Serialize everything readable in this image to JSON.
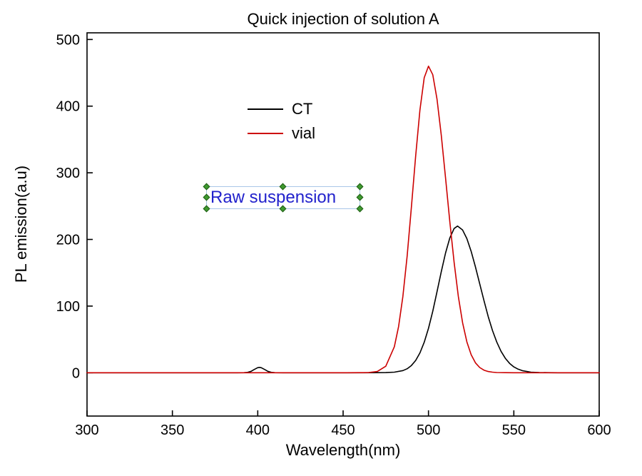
{
  "chart_data": {
    "type": "line",
    "title": "Quick injection of solution A",
    "xlabel": "Wavelength(nm)",
    "ylabel": "PL emission(a.u)",
    "xlim": [
      300,
      600
    ],
    "ylim": [
      -65,
      510
    ],
    "x_ticks": [
      300,
      350,
      400,
      450,
      500,
      550,
      600
    ],
    "y_ticks": [
      0,
      100,
      200,
      300,
      400,
      500
    ],
    "grid": false,
    "legend_position": "upper-left-inside",
    "series": [
      {
        "name": "CT",
        "color": "#000000",
        "points": [
          [
            300,
            0
          ],
          [
            320,
            0
          ],
          [
            340,
            0
          ],
          [
            360,
            0
          ],
          [
            380,
            0
          ],
          [
            388,
            0
          ],
          [
            392,
            0.1
          ],
          [
            394,
            0.5
          ],
          [
            396,
            2.0
          ],
          [
            398,
            4.9
          ],
          [
            400,
            7.6
          ],
          [
            401,
            8.0
          ],
          [
            402,
            7.6
          ],
          [
            404,
            4.9
          ],
          [
            406,
            2.0
          ],
          [
            408,
            0.5
          ],
          [
            410,
            0.1
          ],
          [
            415,
            0
          ],
          [
            430,
            0
          ],
          [
            445,
            0
          ],
          [
            460,
            0
          ],
          [
            470,
            0.1
          ],
          [
            475,
            0.2
          ],
          [
            480,
            0.8
          ],
          [
            485,
            3.2
          ],
          [
            487.5,
            6.0
          ],
          [
            490,
            10.8
          ],
          [
            492.5,
            18.4
          ],
          [
            495,
            29.8
          ],
          [
            497.5,
            45.7
          ],
          [
            500,
            66.7
          ],
          [
            502.5,
            92.3
          ],
          [
            505,
            121.4
          ],
          [
            507.5,
            151.5
          ],
          [
            510,
            179.7
          ],
          [
            512.5,
            202.3
          ],
          [
            515,
            216.4
          ],
          [
            517,
            220.0
          ],
          [
            520,
            214.2
          ],
          [
            522.5,
            201.2
          ],
          [
            525,
            182.1
          ],
          [
            527.5,
            158.8
          ],
          [
            530,
            133.4
          ],
          [
            532.5,
            108.1
          ],
          [
            535,
            84.3
          ],
          [
            537.5,
            63.4
          ],
          [
            540,
            46.0
          ],
          [
            542.5,
            32.1
          ],
          [
            545,
            21.6
          ],
          [
            547.5,
            14.0
          ],
          [
            550,
            8.8
          ],
          [
            552.5,
            5.3
          ],
          [
            555,
            3.1
          ],
          [
            560,
            0.9
          ],
          [
            565,
            0.3
          ],
          [
            570,
            0.1
          ],
          [
            576,
            0
          ],
          [
            588,
            0
          ],
          [
            600,
            0
          ]
        ]
      },
      {
        "name": "vial",
        "color": "#cc0000",
        "points": [
          [
            300,
            0
          ],
          [
            320,
            0
          ],
          [
            340,
            0
          ],
          [
            360,
            0
          ],
          [
            380,
            0
          ],
          [
            400,
            0
          ],
          [
            420,
            0
          ],
          [
            440,
            0
          ],
          [
            452,
            0
          ],
          [
            460,
            0.1
          ],
          [
            465,
            0.2
          ],
          [
            470,
            1.8
          ],
          [
            475,
            9.7
          ],
          [
            480,
            39.0
          ],
          [
            482.5,
            69.5
          ],
          [
            485,
            114.7
          ],
          [
            487.5,
            175.4
          ],
          [
            490,
            248.2
          ],
          [
            492.5,
            325.1
          ],
          [
            495,
            394.2
          ],
          [
            497.5,
            442.6
          ],
          [
            500,
            460.0
          ],
          [
            502.5,
            447.1
          ],
          [
            505,
            410.7
          ],
          [
            507.5,
            356.4
          ],
          [
            510,
            292.3
          ],
          [
            512.5,
            226.5
          ],
          [
            515,
            165.8
          ],
          [
            517.5,
            114.7
          ],
          [
            520,
            75.0
          ],
          [
            522.5,
            46.3
          ],
          [
            525,
            27.1
          ],
          [
            527.5,
            14.9
          ],
          [
            530,
            7.8
          ],
          [
            532.5,
            3.8
          ],
          [
            535,
            1.8
          ],
          [
            537.5,
            0.8
          ],
          [
            540,
            0.3
          ],
          [
            545,
            0.1
          ],
          [
            550,
            0
          ],
          [
            560,
            0
          ],
          [
            580,
            0
          ],
          [
            600,
            0
          ]
        ]
      }
    ],
    "annotation": {
      "text": "Raw suspension",
      "text_color": "#2222cc",
      "selected": true,
      "selection_border_color": "#a9c6e8",
      "handle_color": "#3f9a2f"
    }
  },
  "legend": {
    "items": [
      {
        "label": "CT",
        "color": "#000000"
      },
      {
        "label": "vial",
        "color": "#cc0000"
      }
    ]
  },
  "colors": {
    "axis": "#000000",
    "background": "#ffffff"
  }
}
